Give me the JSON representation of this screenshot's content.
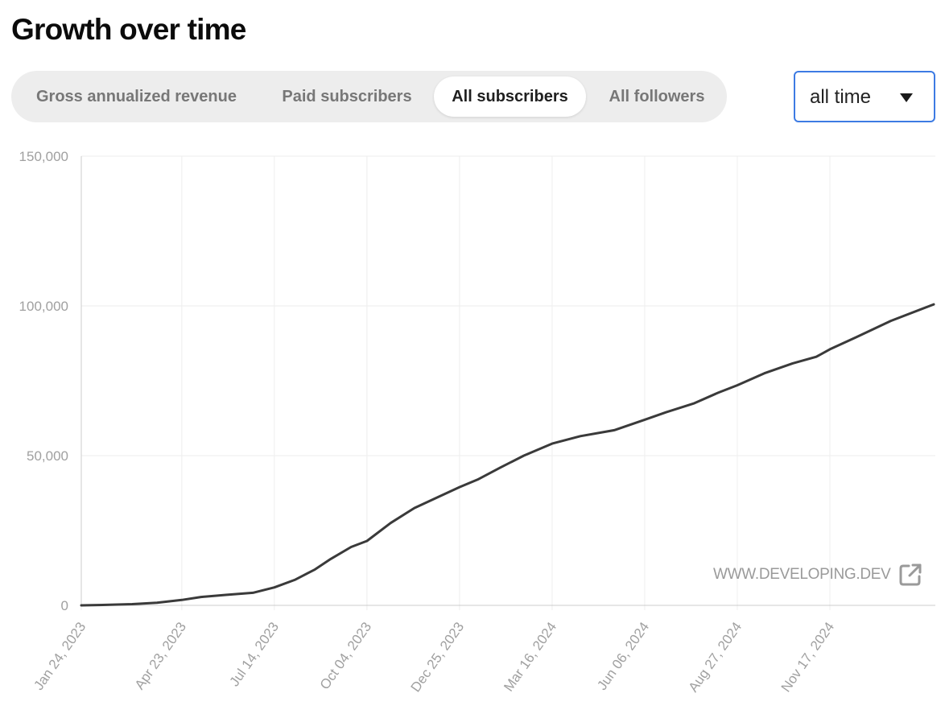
{
  "header": {
    "title": "Growth over time"
  },
  "tabs": [
    {
      "label": "Gross annualized revenue",
      "active": false
    },
    {
      "label": "Paid subscribers",
      "active": false
    },
    {
      "label": "All subscribers",
      "active": true
    },
    {
      "label": "All followers",
      "active": false
    }
  ],
  "range_select": {
    "value": "all time",
    "icon": "caret-down-icon"
  },
  "watermark": {
    "text": "WWW.DEVELOPING.DEV",
    "icon": "external-link-icon"
  },
  "colors": {
    "line": "#3a3a3a",
    "grid": "#eeeeee",
    "axis": "#cccccc",
    "tick_label": "#a0a0a0",
    "select_border": "#3d7be3"
  },
  "chart_data": {
    "type": "line",
    "title": "",
    "xlabel": "",
    "ylabel": "",
    "ylim": [
      0,
      150000
    ],
    "y_ticks": [
      0,
      50000,
      100000,
      150000
    ],
    "y_tick_labels": [
      "0",
      "50,000",
      "100,000",
      "150,000"
    ],
    "x_tick_labels": [
      "Jan 24, 2023",
      "Apr 23, 2023",
      "Jul 14, 2023",
      "Oct 04, 2023",
      "Dec 25, 2023",
      "Mar 16, 2024",
      "Jun 06, 2024",
      "Aug 27, 2024",
      "Nov 17, 2024"
    ],
    "x_range": [
      "2023-01-24",
      "2025-02-17"
    ],
    "grid": true,
    "legend": "none",
    "series": [
      {
        "x": [
          "2023-01-24",
          "2023-02-15",
          "2023-03-10",
          "2023-04-01",
          "2023-04-23",
          "2023-05-10",
          "2023-06-01",
          "2023-06-25",
          "2023-07-14",
          "2023-08-01",
          "2023-08-19",
          "2023-09-02",
          "2023-09-20",
          "2023-10-04",
          "2023-10-25",
          "2023-11-15",
          "2023-12-05",
          "2023-12-25",
          "2024-01-10",
          "2024-01-30",
          "2024-02-20",
          "2024-03-16",
          "2024-04-10",
          "2024-05-10",
          "2024-06-06",
          "2024-06-25",
          "2024-07-20",
          "2024-08-10",
          "2024-08-27",
          "2024-09-20",
          "2024-10-15",
          "2024-11-05",
          "2024-11-17",
          "2024-12-10",
          "2025-01-10",
          "2025-02-17"
        ],
        "y": [
          0,
          150,
          400,
          900,
          1800,
          2800,
          3500,
          4200,
          6000,
          8500,
          12000,
          15500,
          19500,
          21500,
          27500,
          32500,
          36000,
          39500,
          42000,
          46000,
          50000,
          54000,
          56500,
          58500,
          62000,
          64500,
          67500,
          71000,
          73500,
          77500,
          80800,
          83000,
          85500,
          89500,
          95000,
          100500
        ]
      }
    ]
  }
}
